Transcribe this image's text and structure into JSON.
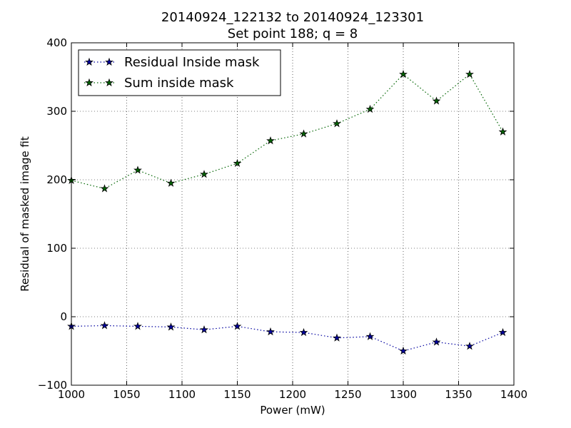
{
  "chart_data": {
    "type": "line",
    "title_line1": "20140924_122132 to 20140924_123301",
    "title_line2": "Set point 188; q = 8",
    "xlabel": "Power (mW)",
    "ylabel": "Residual of masked image fit",
    "xlim": [
      1000,
      1400
    ],
    "ylim": [
      -100,
      400
    ],
    "xticks": [
      1000,
      1050,
      1100,
      1150,
      1200,
      1250,
      1300,
      1350,
      1400
    ],
    "yticks": [
      -100,
      0,
      100,
      200,
      300,
      400
    ],
    "xtick_labels": [
      "1000",
      "1050",
      "1100",
      "1150",
      "1200",
      "1250",
      "1300",
      "1350",
      "1400"
    ],
    "ytick_labels": [
      "−100",
      "0",
      "100",
      "200",
      "300",
      "400"
    ],
    "grid": true,
    "legend_position": "upper-left",
    "x": [
      1000,
      1030,
      1060,
      1090,
      1120,
      1150,
      1180,
      1210,
      1240,
      1270,
      1300,
      1330,
      1360,
      1390
    ],
    "series": [
      {
        "name": "Residual Inside mask",
        "color": "#0000a0",
        "values": [
          -14,
          -13,
          -14,
          -15,
          -19,
          -14,
          -22,
          -23,
          -31,
          -29,
          -50,
          -37,
          -43,
          -23
        ]
      },
      {
        "name": "Sum inside mask",
        "color": "#006400",
        "values": [
          199,
          187,
          214,
          195,
          208,
          224,
          257,
          267,
          282,
          303,
          354,
          315,
          354,
          270
        ]
      }
    ]
  }
}
